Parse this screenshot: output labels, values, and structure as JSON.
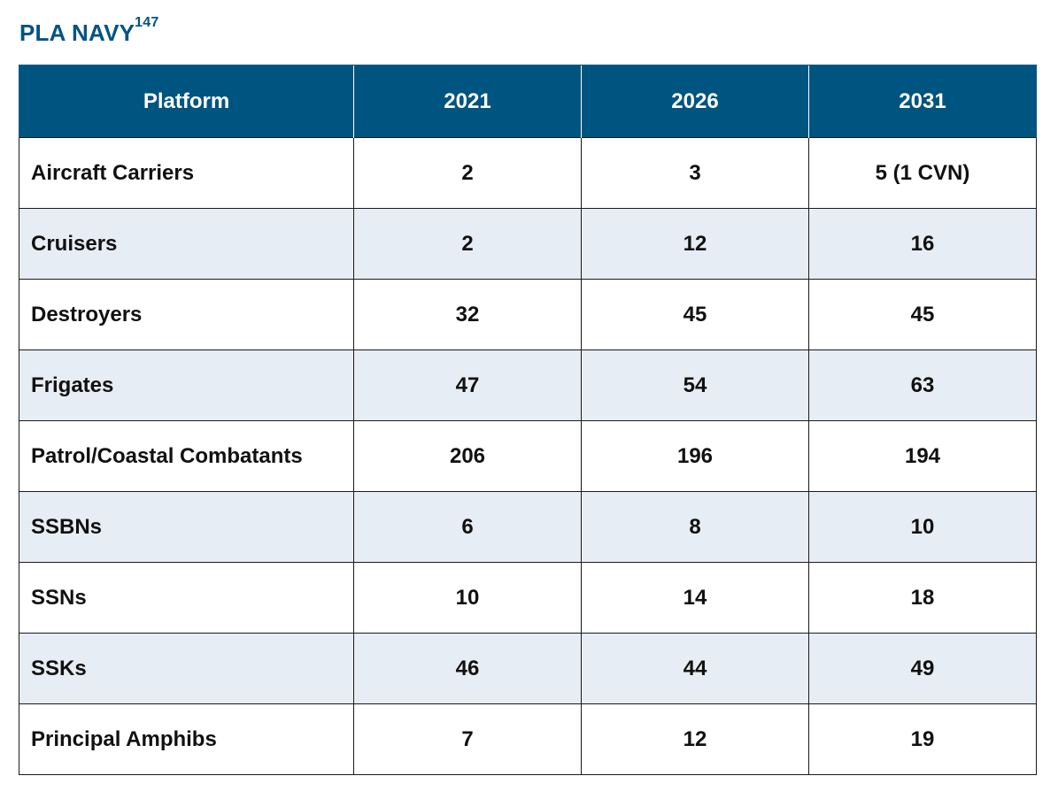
{
  "title": {
    "text": "PLA NAVY",
    "footnote": "147"
  },
  "colors": {
    "header_bg": "#005480",
    "title": "#005480",
    "shaded_row": "#e7edf4",
    "border": "#1a1a1a"
  },
  "table": {
    "headers": [
      "Platform",
      "2021",
      "2026",
      "2031"
    ],
    "rows": [
      {
        "platform": "Aircraft Carriers",
        "y2021": "2",
        "y2026": "3",
        "y2031": "5 (1 CVN)"
      },
      {
        "platform": "Cruisers",
        "y2021": "2",
        "y2026": "12",
        "y2031": "16"
      },
      {
        "platform": "Destroyers",
        "y2021": "32",
        "y2026": "45",
        "y2031": "45"
      },
      {
        "platform": "Frigates",
        "y2021": "47",
        "y2026": "54",
        "y2031": "63"
      },
      {
        "platform": "Patrol/Coastal Combatants",
        "y2021": "206",
        "y2026": "196",
        "y2031": "194"
      },
      {
        "platform": "SSBNs",
        "y2021": "6",
        "y2026": "8",
        "y2031": "10"
      },
      {
        "platform": "SSNs",
        "y2021": "10",
        "y2026": "14",
        "y2031": "18"
      },
      {
        "platform": "SSKs",
        "y2021": "46",
        "y2026": "44",
        "y2031": "49"
      },
      {
        "platform": "Principal Amphibs",
        "y2021": "7",
        "y2026": "12",
        "y2031": "19"
      }
    ]
  }
}
